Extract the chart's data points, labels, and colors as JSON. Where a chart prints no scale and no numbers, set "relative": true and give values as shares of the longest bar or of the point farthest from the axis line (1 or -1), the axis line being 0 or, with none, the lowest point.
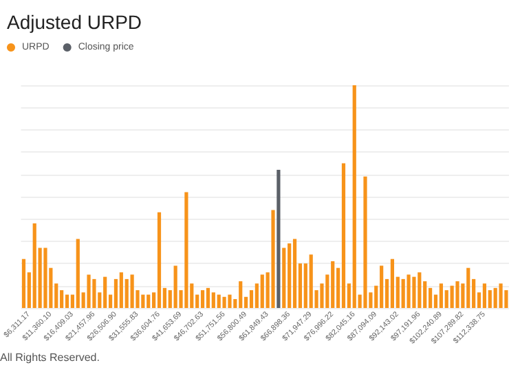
{
  "chart_data": {
    "type": "bar",
    "title": "Adjusted URPD",
    "relative": true,
    "grid": "y",
    "legend": "top left",
    "categories": [
      null,
      "$6,311.17",
      null,
      null,
      null,
      "$11,360.10",
      null,
      null,
      null,
      "$16,409.03",
      null,
      null,
      null,
      "$21,457.96",
      null,
      null,
      null,
      "$26,506.90",
      null,
      null,
      null,
      "$31,555.83",
      null,
      null,
      null,
      "$36,604.76",
      null,
      null,
      null,
      "$41,653.69",
      null,
      null,
      null,
      "$46,702.63",
      null,
      null,
      null,
      "$51,751.56",
      null,
      null,
      null,
      "$56,800.49",
      null,
      null,
      null,
      "$61,849.43",
      null,
      null,
      null,
      "$66,898.36",
      null,
      null,
      null,
      "$71,947.29",
      null,
      null,
      null,
      "$76,996.22",
      null,
      null,
      null,
      "$82,045.16",
      null,
      null,
      null,
      "$87,094.09",
      null,
      null,
      null,
      "$92,143.02",
      null,
      null,
      null,
      "$97,191.96",
      null,
      null,
      null,
      "$102,240.89",
      null,
      null,
      null,
      "$107,289.82",
      null,
      null,
      null,
      "$112,338.75",
      null,
      null,
      null,
      null
    ],
    "series": [
      {
        "name": "URPD",
        "color": "#f7931a",
        "values": [
          0.22,
          0.16,
          0.38,
          0.27,
          0.27,
          0.18,
          0.11,
          0.08,
          0.06,
          0.06,
          0.31,
          0.07,
          0.15,
          0.13,
          0.07,
          0.14,
          0.06,
          0.13,
          0.16,
          0.13,
          0.15,
          0.08,
          0.06,
          0.06,
          0.07,
          0.43,
          0.09,
          0.08,
          0.19,
          0.08,
          0.52,
          0.11,
          0.06,
          0.08,
          0.09,
          0.07,
          0.06,
          0.05,
          0.06,
          0.04,
          0.12,
          0.05,
          0.08,
          0.11,
          0.15,
          0.16,
          0.44,
          null,
          0.27,
          0.29,
          0.31,
          0.2,
          0.2,
          0.24,
          0.08,
          0.11,
          0.15,
          0.21,
          0.18,
          0.65,
          0.11,
          1,
          0.06,
          0.59,
          0.07,
          0.1,
          0.19,
          0.13,
          0.22,
          0.14,
          0.13,
          0.15,
          0.14,
          0.16,
          0.12,
          0.09,
          0.06,
          0.11,
          0.08,
          0.1,
          0.12,
          0.11,
          0.18,
          0.13,
          0.07,
          0.11,
          0.08,
          0.09,
          0.11,
          0.08
        ]
      },
      {
        "name": "Closing price",
        "color": "#5b6068",
        "values": [
          null,
          null,
          null,
          null,
          null,
          null,
          null,
          null,
          null,
          null,
          null,
          null,
          null,
          null,
          null,
          null,
          null,
          null,
          null,
          null,
          null,
          null,
          null,
          null,
          null,
          null,
          null,
          null,
          null,
          null,
          null,
          null,
          null,
          null,
          null,
          null,
          null,
          null,
          null,
          null,
          null,
          null,
          null,
          null,
          null,
          null,
          null,
          0.62,
          null,
          null,
          null,
          null,
          null,
          null,
          null,
          null,
          null,
          null,
          null,
          null,
          null,
          null,
          null,
          null,
          null,
          null,
          null,
          null,
          null,
          null,
          null,
          null,
          null,
          null,
          null,
          null,
          null,
          null,
          null,
          null,
          null,
          null,
          null,
          null,
          null,
          null,
          null,
          null,
          null,
          null
        ]
      }
    ],
    "annotations": [
      "All Rights Reserved."
    ]
  }
}
